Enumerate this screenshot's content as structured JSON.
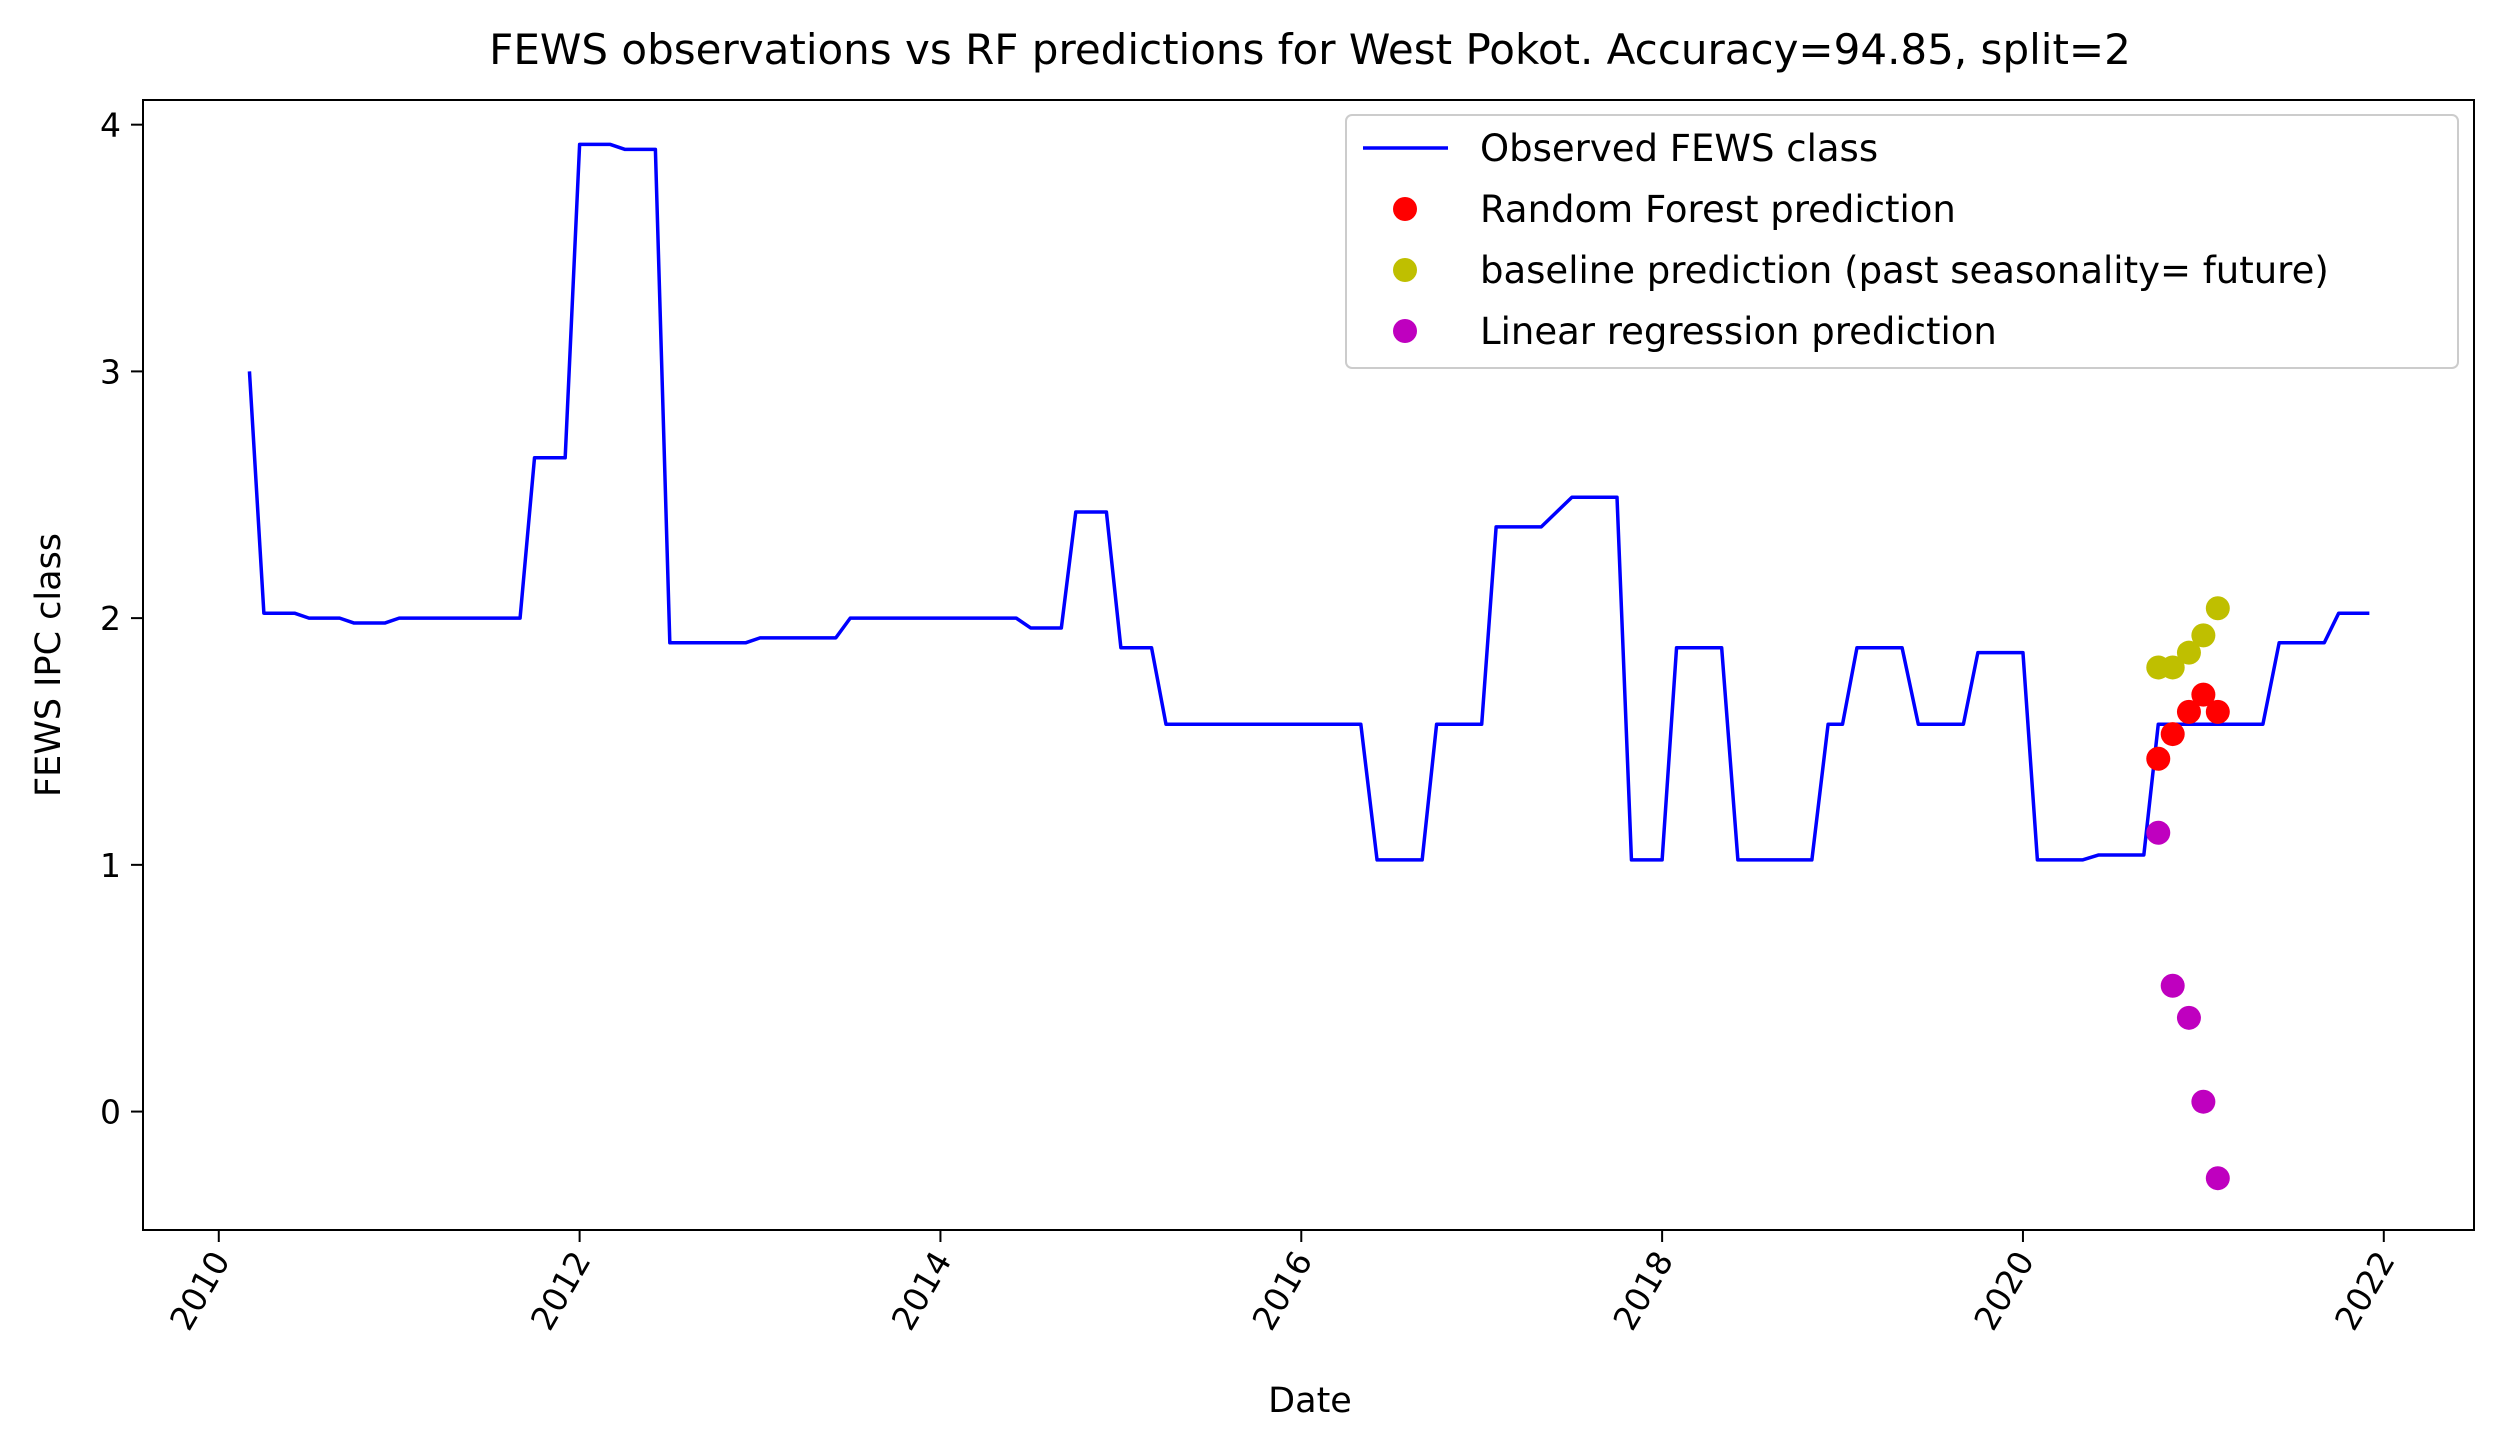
{
  "chart_data": {
    "type": "line",
    "title": "FEWS observations vs RF predictions for West Pokot. Accuracy=94.85, split=2",
    "xlabel": "Date",
    "ylabel": "FEWS IPC class",
    "xlim": [
      2009.58,
      2022.5
    ],
    "ylim": [
      -0.48,
      4.1
    ],
    "x_ticks": [
      {
        "value": 2010,
        "label": "2010"
      },
      {
        "value": 2012,
        "label": "2012"
      },
      {
        "value": 2014,
        "label": "2014"
      },
      {
        "value": 2016,
        "label": "2016"
      },
      {
        "value": 2018,
        "label": "2018"
      },
      {
        "value": 2020,
        "label": "2020"
      },
      {
        "value": 2022,
        "label": "2022"
      }
    ],
    "y_ticks": [
      {
        "value": 0,
        "label": "0"
      },
      {
        "value": 1,
        "label": "1"
      },
      {
        "value": 2,
        "label": "2"
      },
      {
        "value": 3,
        "label": "3"
      },
      {
        "value": 4,
        "label": "4"
      }
    ],
    "grid": false,
    "legend_position": "top-right",
    "series": [
      {
        "name": "Observed FEWS class",
        "kind": "line",
        "color": "#0000ff",
        "points": [
          [
            2010.17,
            3.0
          ],
          [
            2010.25,
            2.02
          ],
          [
            2010.42,
            2.02
          ],
          [
            2010.5,
            2.0
          ],
          [
            2010.67,
            2.0
          ],
          [
            2010.75,
            1.98
          ],
          [
            2010.92,
            1.98
          ],
          [
            2011.0,
            2.0
          ],
          [
            2011.67,
            2.0
          ],
          [
            2011.75,
            2.65
          ],
          [
            2011.92,
            2.65
          ],
          [
            2012.0,
            3.92
          ],
          [
            2012.17,
            3.92
          ],
          [
            2012.25,
            3.9
          ],
          [
            2012.42,
            3.9
          ],
          [
            2012.5,
            1.9
          ],
          [
            2012.92,
            1.9
          ],
          [
            2013.0,
            1.92
          ],
          [
            2013.42,
            1.92
          ],
          [
            2013.5,
            2.0
          ],
          [
            2014.42,
            2.0
          ],
          [
            2014.5,
            1.96
          ],
          [
            2014.67,
            1.96
          ],
          [
            2014.75,
            2.43
          ],
          [
            2014.92,
            2.43
          ],
          [
            2015.0,
            1.88
          ],
          [
            2015.17,
            1.88
          ],
          [
            2015.25,
            1.57
          ],
          [
            2016.33,
            1.57
          ],
          [
            2016.42,
            1.02
          ],
          [
            2016.67,
            1.02
          ],
          [
            2016.75,
            1.57
          ],
          [
            2017.0,
            1.57
          ],
          [
            2017.08,
            2.37
          ],
          [
            2017.33,
            2.37
          ],
          [
            2017.5,
            2.49
          ],
          [
            2017.75,
            2.49
          ],
          [
            2017.83,
            1.02
          ],
          [
            2018.0,
            1.02
          ],
          [
            2018.08,
            1.88
          ],
          [
            2018.33,
            1.88
          ],
          [
            2018.42,
            1.02
          ],
          [
            2018.83,
            1.02
          ],
          [
            2018.92,
            1.57
          ],
          [
            2019.0,
            1.57
          ],
          [
            2019.08,
            1.88
          ],
          [
            2019.33,
            1.88
          ],
          [
            2019.42,
            1.57
          ],
          [
            2019.67,
            1.57
          ],
          [
            2019.75,
            1.86
          ],
          [
            2020.0,
            1.86
          ],
          [
            2020.08,
            1.02
          ],
          [
            2020.33,
            1.02
          ],
          [
            2020.42,
            1.04
          ],
          [
            2020.67,
            1.04
          ],
          [
            2020.75,
            1.57
          ],
          [
            2021.33,
            1.57
          ],
          [
            2021.42,
            1.9
          ],
          [
            2021.67,
            1.9
          ],
          [
            2021.75,
            2.02
          ],
          [
            2021.92,
            2.02
          ]
        ]
      },
      {
        "name": "Random Forest prediction",
        "kind": "scatter",
        "color": "#ff0000",
        "points": [
          [
            2020.75,
            1.43
          ],
          [
            2020.83,
            1.53
          ],
          [
            2020.92,
            1.62
          ],
          [
            2021.0,
            1.69
          ],
          [
            2021.08,
            1.62
          ]
        ]
      },
      {
        "name": "baseline prediction (past seasonality= future)",
        "kind": "scatter",
        "color": "#bfbf00",
        "points": [
          [
            2020.75,
            1.8
          ],
          [
            2020.83,
            1.8
          ],
          [
            2020.92,
            1.86
          ],
          [
            2021.0,
            1.93
          ],
          [
            2021.08,
            2.04
          ]
        ]
      },
      {
        "name": "Linear regression prediction",
        "kind": "scatter",
        "color": "#bf00bf",
        "points": [
          [
            2020.75,
            1.13
          ],
          [
            2020.83,
            0.51
          ],
          [
            2020.92,
            0.38
          ],
          [
            2021.0,
            0.04
          ],
          [
            2021.08,
            -0.27
          ]
        ]
      }
    ]
  }
}
